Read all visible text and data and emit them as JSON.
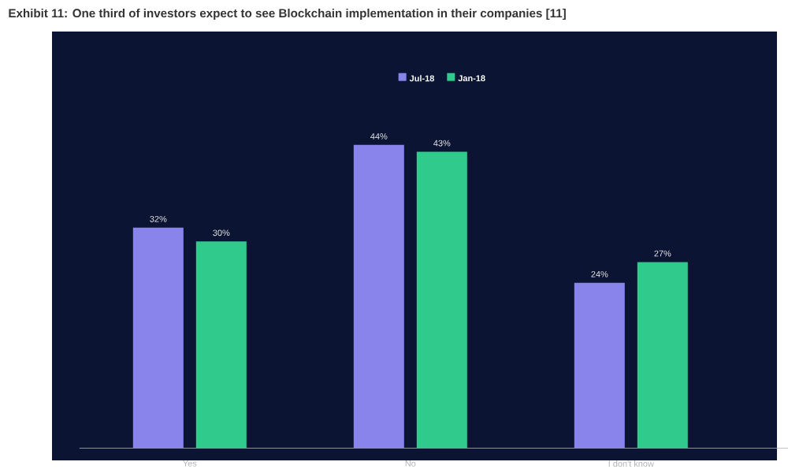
{
  "chart_data": {
    "type": "bar",
    "title": "Exhibit 11: One third of investors expect to see Blockchain implementation in their companies [11]",
    "categories": [
      "Yes",
      "No",
      "I don't know"
    ],
    "series": [
      {
        "name": "Jul-18",
        "color": "#8884ec",
        "values": [
          32,
          44,
          24
        ],
        "value_labels": [
          "32%",
          "44%",
          "24%"
        ]
      },
      {
        "name": "Jan-18",
        "color": "#2fca8c",
        "values": [
          30,
          43,
          27
        ],
        "value_labels": [
          "30%",
          "43%",
          "27%"
        ]
      }
    ],
    "legend": "top",
    "grid": false
  }
}
